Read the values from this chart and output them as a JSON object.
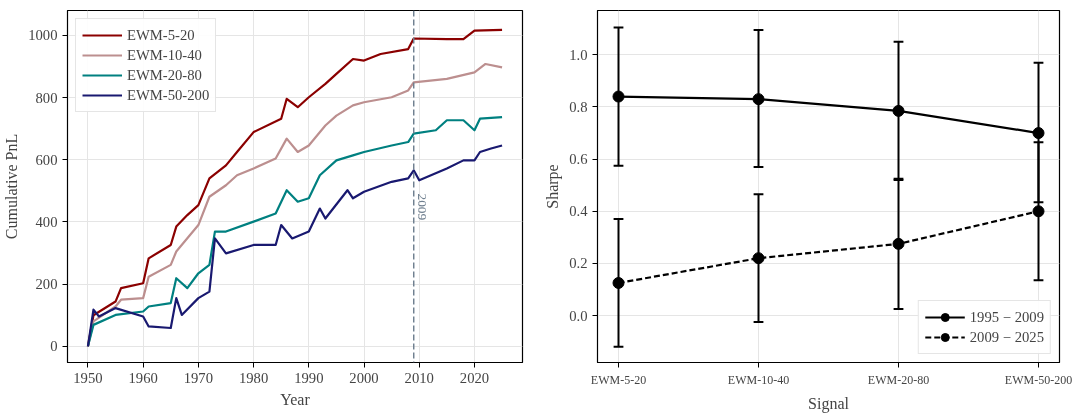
{
  "chart_data": [
    {
      "type": "line",
      "xlabel": "Year",
      "ylabel": "Cumulative PnL",
      "xlim": [
        1946.3,
        2028.7
      ],
      "ylim": [
        -52,
        1080
      ],
      "xticks": [
        1950,
        1960,
        1970,
        1980,
        1990,
        2000,
        2010,
        2020
      ],
      "yticks": [
        0,
        200,
        400,
        600,
        800,
        1000
      ],
      "grid": true,
      "legend": "top left",
      "line_style": "solid",
      "marker": "none",
      "ref_lines": [
        {
          "axis": "x",
          "value": 2009,
          "label": "2009",
          "color": "#708090",
          "line_style": "dashed"
        }
      ],
      "series": [
        {
          "name": "EWM-5-20",
          "color": "#8b0000",
          "x": [
            1950,
            1951,
            1955,
            1956,
            1960,
            1961,
            1965,
            1966,
            1968,
            1970,
            1972,
            1975,
            1977,
            1980,
            1985,
            1986,
            1988,
            1990,
            1993,
            1995,
            1998,
            2000,
            2003,
            2008,
            2009,
            2015,
            2018,
            2020,
            2025
          ],
          "values": [
            0,
            100,
            144,
            187,
            203,
            283,
            326,
            385,
            422,
            454,
            540,
            582,
            625,
            689,
            732,
            796,
            769,
            801,
            844,
            876,
            924,
            919,
            940,
            956,
            990,
            988,
            988,
            1015,
            1018
          ]
        },
        {
          "name": "EWM-10-40",
          "color": "#bc8f8f",
          "x": [
            1950,
            1951,
            1955,
            1956,
            1960,
            1961,
            1965,
            1966,
            1970,
            1972,
            1975,
            1977,
            1980,
            1984,
            1986,
            1988,
            1990,
            1993,
            1995,
            1998,
            2000,
            2005,
            2008,
            2009,
            2015,
            2020,
            2022,
            2025
          ],
          "values": [
            0,
            80,
            128,
            150,
            155,
            224,
            262,
            305,
            390,
            481,
            518,
            550,
            572,
            604,
            668,
            625,
            646,
            710,
            742,
            775,
            785,
            801,
            823,
            849,
            860,
            881,
            908,
            897
          ]
        },
        {
          "name": "EWM-20-80",
          "color": "#008080",
          "x": [
            1950,
            1951,
            1955,
            1960,
            1961,
            1965,
            1966,
            1968,
            1970,
            1972,
            1973,
            1975,
            1980,
            1984,
            1986,
            1988,
            1990,
            1992,
            1995,
            1998,
            2000,
            2005,
            2008,
            2009,
            2013,
            2015,
            2018,
            2020,
            2021,
            2025
          ],
          "values": [
            0,
            69,
            101,
            112,
            128,
            139,
            219,
            187,
            235,
            262,
            369,
            369,
            401,
            427,
            502,
            465,
            476,
            550,
            598,
            614,
            625,
            646,
            657,
            684,
            695,
            727,
            727,
            695,
            732,
            737
          ]
        },
        {
          "name": "EWM-50-200",
          "color": "#191970",
          "x": [
            1950,
            1951,
            1952,
            1955,
            1960,
            1961,
            1965,
            1966,
            1967,
            1970,
            1972,
            1973,
            1975,
            1980,
            1984,
            1985,
            1987,
            1990,
            1992,
            1993,
            1997,
            1998,
            2000,
            2005,
            2008,
            2009,
            2010,
            2015,
            2018,
            2020,
            2021,
            2023,
            2025
          ],
          "values": [
            0,
            118,
            96,
            123,
            96,
            64,
            59,
            155,
            101,
            155,
            176,
            347,
            299,
            326,
            326,
            390,
            347,
            369,
            443,
            411,
            502,
            476,
            497,
            529,
            540,
            566,
            534,
            572,
            598,
            598,
            625,
            636,
            646
          ]
        }
      ]
    },
    {
      "type": "line",
      "xlabel": "Signal",
      "ylabel": "Sharpe",
      "categories": [
        "EWM-5-20",
        "EWM-10-40",
        "EWM-20-80",
        "EWM-50-200"
      ],
      "ylim": [
        -0.18,
        1.17
      ],
      "yticks": [
        {
          "value": 0,
          "label": "0.0"
        },
        0.2,
        0.4,
        0.6,
        0.8,
        {
          "value": 1,
          "label": "1.0"
        }
      ],
      "grid": true,
      "legend": "bottom right",
      "marker": "circle",
      "series": [
        {
          "name": "1995 − 2009",
          "color": "#000000",
          "line_style": "solid",
          "values": [
            0.84,
            0.83,
            0.785,
            0.7
          ],
          "errors": [
            [
              0.575,
              1.105
            ],
            [
              0.57,
              1.095
            ],
            [
              0.52,
              1.05
            ],
            [
              0.435,
              0.97
            ]
          ]
        },
        {
          "name": "2009 − 2025",
          "color": "#000000",
          "line_style": "dashed",
          "values": [
            0.125,
            0.22,
            0.275,
            0.4
          ],
          "errors": [
            [
              -0.12,
              0.37
            ],
            [
              -0.025,
              0.465
            ],
            [
              0.025,
              0.525
            ],
            [
              0.135,
              0.665
            ]
          ]
        }
      ]
    }
  ]
}
